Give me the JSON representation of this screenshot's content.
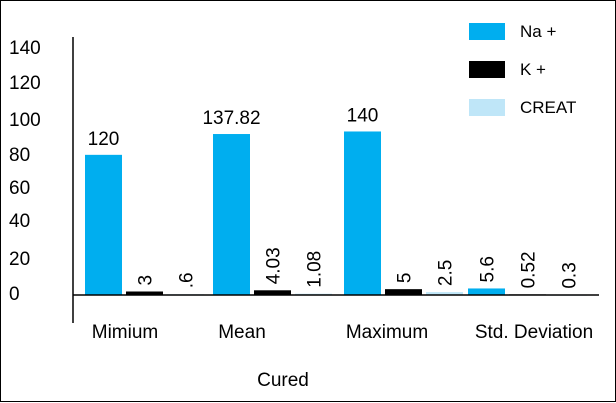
{
  "chart_data": {
    "type": "bar",
    "title": "",
    "xlabel": "Cured",
    "ylabel": "",
    "ylim": [
      0,
      140
    ],
    "yticks": [
      0,
      20,
      40,
      60,
      80,
      100,
      120,
      140
    ],
    "grid": false,
    "legend_position": "top-right",
    "categories": [
      "Mimium",
      "Mean",
      "Maximum",
      "Std. Deviation"
    ],
    "series": [
      {
        "name": "Na +",
        "color": "#00AEEF",
        "values": [
          120,
          137.82,
          140,
          5.6
        ],
        "labels": [
          "120",
          "137.82",
          "140",
          "5.6"
        ]
      },
      {
        "name": "K +",
        "color": "#000000",
        "values": [
          3,
          4.03,
          5,
          0.52
        ],
        "labels": [
          "3",
          "4.03",
          "5",
          "0.52"
        ]
      },
      {
        "name": "CREAT",
        "color": "#BFE6F8",
        "values": [
          0.6,
          1.08,
          2.5,
          0.3
        ],
        "labels": [
          ".6",
          "1.08",
          "2.5",
          "0.3"
        ]
      }
    ]
  }
}
